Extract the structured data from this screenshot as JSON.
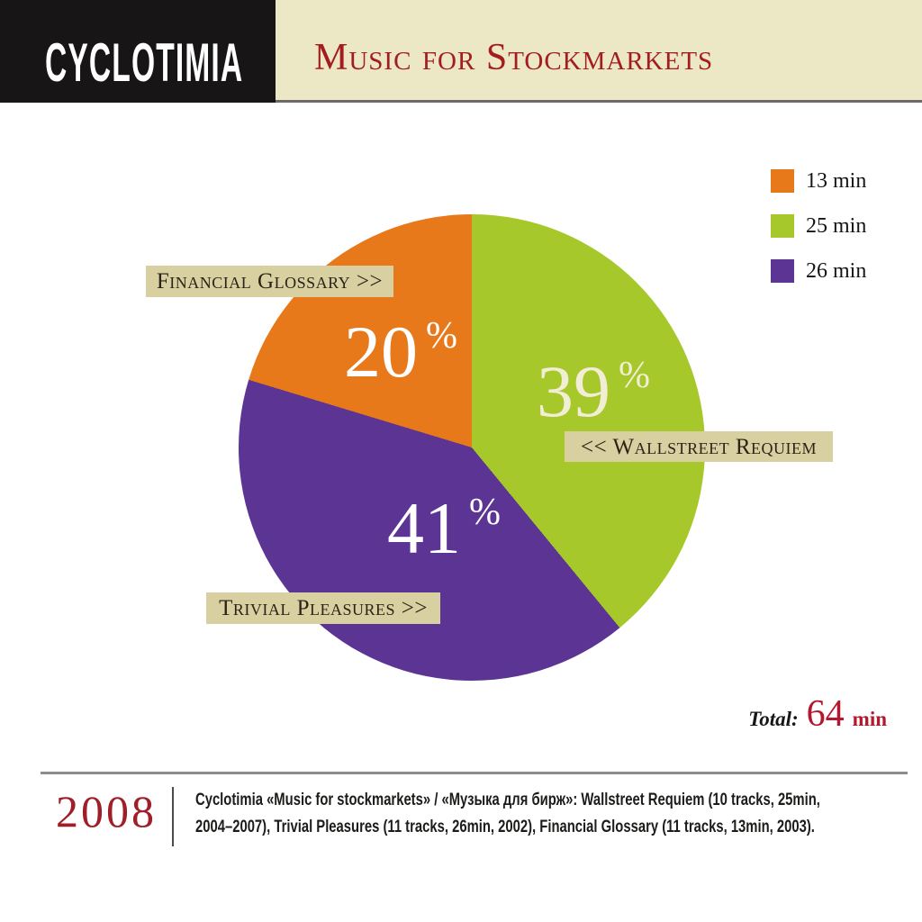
{
  "header": {
    "artist": "CYCLOTIMIA",
    "album_title": "Music for Stockmarkets"
  },
  "chart_data": {
    "type": "pie",
    "title": "Music for Stockmarkets",
    "percent_sign": "%",
    "start_angle_deg": 0,
    "direction": "clockwise",
    "slices": [
      {
        "name": "Wallstreet Requiem",
        "percent": 39,
        "minutes": 25,
        "color": "#a6c82b",
        "callout": "<< Wallstreet Requiem"
      },
      {
        "name": "Trivial Pleasures",
        "percent": 41,
        "minutes": 26,
        "color": "#5b3494",
        "callout": "Trivial Pleasures >>"
      },
      {
        "name": "Financial Glossary",
        "percent": 20,
        "minutes": 13,
        "color": "#e8791b",
        "callout": "Financial Glossary >>"
      }
    ],
    "total_minutes": 64,
    "legend_position": "top-right"
  },
  "legend": {
    "items": [
      {
        "label": "13 min",
        "color": "#e8791b"
      },
      {
        "label": "25 min",
        "color": "#a6c82b"
      },
      {
        "label": "26 min",
        "color": "#5b3494"
      }
    ]
  },
  "total": {
    "label": "Total:",
    "value": "64",
    "unit": "min"
  },
  "footer": {
    "year": "2008",
    "description_line1": "Cyclotimia «Music for stockmarkets» / «Музыка для бирж»: Wallstreet Requiem (10 tracks, 25min,",
    "description_line2": "2004–2007), Trivial Pleasures (11 tracks, 26min, 2002), Financial Glossary (11 tracks, 13min, 2003)."
  }
}
